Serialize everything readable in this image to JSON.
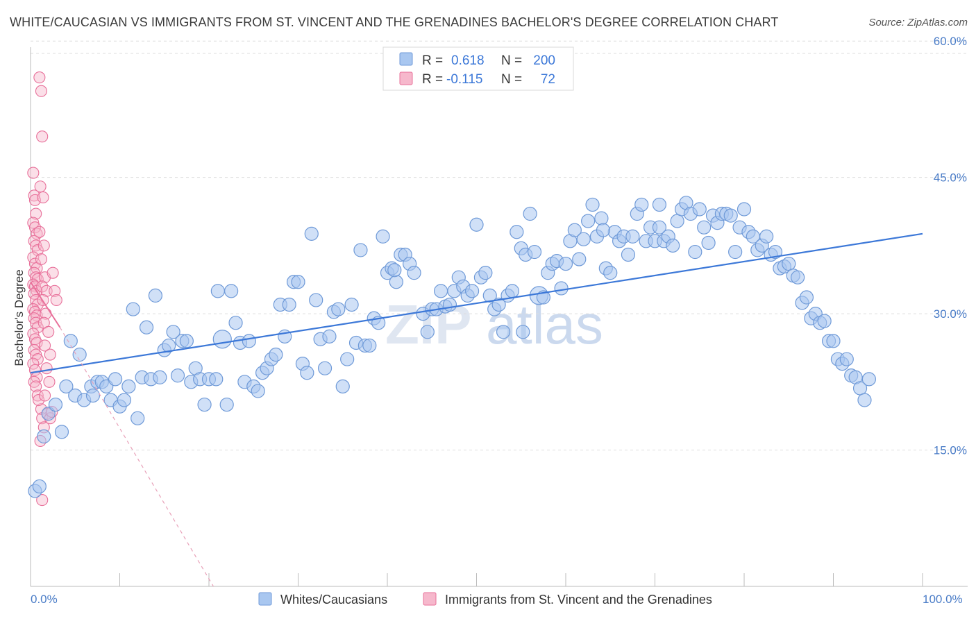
{
  "title": "WHITE/CAUCASIAN VS IMMIGRANTS FROM ST. VINCENT AND THE GRENADINES BACHELOR'S DEGREE CORRELATION CHART",
  "source": "Source: ZipAtlas.com",
  "watermark": {
    "zip": "ZIP",
    "atlas": "atlas"
  },
  "colors": {
    "blue": "#3c78d8",
    "blue_fill": "#a9c7f0",
    "pink": "#e8709a",
    "pink_fill": "#f6b8cc",
    "grid": "#dddddd"
  },
  "legend": {
    "rows": [
      {
        "r_label": "R =",
        "r_value": "0.618",
        "n_label": "N =",
        "n_value": "200"
      },
      {
        "r_label": "R =",
        "r_value": "-0.115",
        "n_label": "N =",
        "n_value": "72"
      }
    ]
  },
  "chart_data": {
    "type": "scatter",
    "title": "WHITE/CAUCASIAN VS IMMIGRANTS FROM ST. VINCENT AND THE GRENADINES BACHELOR'S DEGREE CORRELATION CHART",
    "xlabel": "",
    "ylabel": "Bachelor's Degree",
    "xlim": [
      0,
      100
    ],
    "ylim": [
      0,
      62
    ],
    "x_tick_labels": [
      "0.0%",
      "100.0%"
    ],
    "y_ticks": [
      15,
      30,
      45,
      60
    ],
    "y_tick_labels": [
      "15.0%",
      "30.0%",
      "45.0%",
      "60.0%"
    ],
    "grid": true,
    "legend_position": "top-center",
    "series": [
      {
        "name": "Whites/Caucasians",
        "color": "#3c78d8",
        "r": 0.618,
        "n": 200,
        "trend": {
          "x": [
            0,
            100
          ],
          "y": [
            23.5,
            38.8
          ]
        },
        "points": [
          [
            0.5,
            10.5
          ],
          [
            1,
            11
          ],
          [
            1.5,
            16.5
          ],
          [
            2,
            19
          ],
          [
            2.8,
            20
          ],
          [
            3.5,
            17
          ],
          [
            4,
            22
          ],
          [
            4.5,
            27
          ],
          [
            5,
            21
          ],
          [
            5.5,
            25.5
          ],
          [
            6,
            20.5
          ],
          [
            6.8,
            22
          ],
          [
            7,
            21
          ],
          [
            7.5,
            22.5
          ],
          [
            8,
            22.5
          ],
          [
            8.5,
            22
          ],
          [
            9,
            20.5
          ],
          [
            9.5,
            22.8
          ],
          [
            10,
            19.8
          ],
          [
            10.5,
            20.5
          ],
          [
            11,
            22
          ],
          [
            11.5,
            30.5
          ],
          [
            12,
            18.5
          ],
          [
            12.5,
            23
          ],
          [
            13,
            28.5
          ],
          [
            13.5,
            22.8
          ],
          [
            14,
            32
          ],
          [
            14.5,
            23
          ],
          [
            15,
            26
          ],
          [
            15.5,
            26.5
          ],
          [
            16,
            28
          ],
          [
            16.5,
            23.2
          ],
          [
            17,
            27
          ],
          [
            17.5,
            27
          ],
          [
            18,
            22.5
          ],
          [
            18.5,
            24
          ],
          [
            19,
            22.8
          ],
          [
            19.5,
            20
          ],
          [
            20,
            22.8
          ],
          [
            21,
            32.5
          ],
          [
            21.5,
            27.2
          ],
          [
            22,
            20
          ],
          [
            22.5,
            32.5
          ],
          [
            23,
            29
          ],
          [
            23.5,
            26.8
          ],
          [
            24,
            22.5
          ],
          [
            24.5,
            27
          ],
          [
            25,
            22
          ],
          [
            25.5,
            21.5
          ],
          [
            26,
            23.5
          ],
          [
            26.5,
            24
          ],
          [
            27,
            25
          ],
          [
            27.5,
            25.5
          ],
          [
            28,
            31
          ],
          [
            28.5,
            27.5
          ],
          [
            29,
            31
          ],
          [
            29.5,
            33.5
          ],
          [
            30,
            33.5
          ],
          [
            30.5,
            24.5
          ],
          [
            31,
            23.5
          ],
          [
            31.5,
            38.8
          ],
          [
            32,
            31.5
          ],
          [
            32.5,
            27.2
          ],
          [
            33,
            24
          ],
          [
            33.5,
            27.5
          ],
          [
            34,
            30.2
          ],
          [
            34.5,
            30.5
          ],
          [
            35,
            22
          ],
          [
            35.5,
            25
          ],
          [
            36,
            31
          ],
          [
            36.5,
            26.8
          ],
          [
            37,
            37
          ],
          [
            37.5,
            26.5
          ],
          [
            38,
            26.5
          ],
          [
            38.5,
            29.5
          ],
          [
            39,
            29
          ],
          [
            39.5,
            38.5
          ],
          [
            40,
            34.5
          ],
          [
            40.5,
            35
          ],
          [
            41,
            33.5
          ],
          [
            41.5,
            36.5
          ],
          [
            42,
            36.5
          ],
          [
            42.5,
            35.5
          ],
          [
            43,
            34.5
          ],
          [
            44,
            30
          ],
          [
            44.5,
            28
          ],
          [
            45,
            30.5
          ],
          [
            45.5,
            30.5
          ],
          [
            46,
            32.5
          ],
          [
            46.5,
            30.8
          ],
          [
            47,
            31
          ],
          [
            47.5,
            32.5
          ],
          [
            48,
            34
          ],
          [
            48.5,
            33
          ],
          [
            49,
            32
          ],
          [
            49.5,
            32.5
          ],
          [
            50,
            39.8
          ],
          [
            50.5,
            34
          ],
          [
            51,
            34.5
          ],
          [
            51.5,
            32
          ],
          [
            52,
            30.5
          ],
          [
            52.5,
            31
          ],
          [
            53,
            28
          ],
          [
            53.5,
            32
          ],
          [
            54,
            32.5
          ],
          [
            54.5,
            39
          ],
          [
            55,
            37.2
          ],
          [
            55.5,
            36.5
          ],
          [
            56,
            41
          ],
          [
            56.5,
            36.8
          ],
          [
            57,
            32
          ],
          [
            57.5,
            31.8
          ],
          [
            58,
            34.5
          ],
          [
            58.5,
            35.5
          ],
          [
            59,
            35.8
          ],
          [
            59.5,
            32.8
          ],
          [
            60,
            35.5
          ],
          [
            60.5,
            38
          ],
          [
            61,
            39.2
          ],
          [
            61.5,
            36
          ],
          [
            62,
            38.2
          ],
          [
            62.5,
            40.2
          ],
          [
            63,
            42
          ],
          [
            63.5,
            38.5
          ],
          [
            64,
            40.5
          ],
          [
            64.5,
            35
          ],
          [
            65,
            34.5
          ],
          [
            65.5,
            39
          ],
          [
            66,
            38
          ],
          [
            66.5,
            38.5
          ],
          [
            67,
            36.5
          ],
          [
            67.5,
            38.5
          ],
          [
            68,
            41
          ],
          [
            68.5,
            42
          ],
          [
            69,
            38
          ],
          [
            69.5,
            39.5
          ],
          [
            70,
            38
          ],
          [
            70.5,
            39.5
          ],
          [
            71,
            38
          ],
          [
            71.5,
            38.5
          ],
          [
            72,
            37.5
          ],
          [
            72.5,
            40.2
          ],
          [
            73,
            41.5
          ],
          [
            73.5,
            42.2
          ],
          [
            74,
            41
          ],
          [
            74.5,
            36.8
          ],
          [
            75,
            41.5
          ],
          [
            75.5,
            39.5
          ],
          [
            76,
            37.8
          ],
          [
            76.5,
            40.8
          ],
          [
            77,
            40
          ],
          [
            77.5,
            41
          ],
          [
            78,
            41
          ],
          [
            78.5,
            40.8
          ],
          [
            79,
            36.8
          ],
          [
            79.5,
            39.5
          ],
          [
            80,
            41.5
          ],
          [
            80.5,
            39
          ],
          [
            81,
            38.5
          ],
          [
            81.5,
            37
          ],
          [
            82,
            37.5
          ],
          [
            82.5,
            38.5
          ],
          [
            83,
            36.5
          ],
          [
            83.5,
            36.8
          ],
          [
            84,
            35
          ],
          [
            84.5,
            35.2
          ],
          [
            85,
            35.5
          ],
          [
            85.5,
            34.2
          ],
          [
            86,
            34
          ],
          [
            86.5,
            31.2
          ],
          [
            87,
            31.8
          ],
          [
            87.5,
            29.5
          ],
          [
            88,
            30
          ],
          [
            88.5,
            29
          ],
          [
            89,
            29.2
          ],
          [
            89.5,
            27
          ],
          [
            90,
            27
          ],
          [
            90.5,
            25
          ],
          [
            91,
            24.5
          ],
          [
            91.5,
            25
          ],
          [
            92,
            23.2
          ],
          [
            92.5,
            23
          ],
          [
            93,
            21.8
          ],
          [
            93.5,
            20.5
          ],
          [
            94,
            22.8
          ],
          [
            20.8,
            22.8
          ],
          [
            40.8,
            34.8
          ],
          [
            70.5,
            42
          ],
          [
            64.2,
            39.2
          ],
          [
            55.2,
            28
          ]
        ]
      },
      {
        "name": "Immigrants from St. Vincent and the Grenadines",
        "color": "#e8709a",
        "r": -0.115,
        "n": 72,
        "trend": {
          "x": [
            0,
            3.3
          ],
          "y": [
            33.5,
            28.5
          ]
        },
        "trend_dashed": {
          "x": [
            3.3,
            20.5
          ],
          "y": [
            28.5,
            0
          ]
        },
        "points": [
          [
            0.3,
            45.5
          ],
          [
            0.4,
            43
          ],
          [
            0.5,
            42.5
          ],
          [
            0.6,
            41
          ],
          [
            0.3,
            40
          ],
          [
            0.5,
            39.5
          ],
          [
            0.7,
            38.8
          ],
          [
            0.4,
            38
          ],
          [
            0.6,
            37.5
          ],
          [
            0.8,
            37
          ],
          [
            0.3,
            36.2
          ],
          [
            0.5,
            35.5
          ],
          [
            0.7,
            35
          ],
          [
            0.4,
            34.5
          ],
          [
            0.6,
            34
          ],
          [
            0.8,
            33.8
          ],
          [
            0.3,
            33.2
          ],
          [
            0.5,
            33
          ],
          [
            0.7,
            32.5
          ],
          [
            0.4,
            32.2
          ],
          [
            0.6,
            31.5
          ],
          [
            0.8,
            31
          ],
          [
            0.3,
            30.5
          ],
          [
            0.5,
            30.2
          ],
          [
            0.7,
            29.8
          ],
          [
            0.4,
            29.5
          ],
          [
            0.6,
            29
          ],
          [
            0.8,
            28.5
          ],
          [
            0.3,
            27.8
          ],
          [
            0.5,
            27.2
          ],
          [
            0.7,
            26.8
          ],
          [
            0.4,
            26
          ],
          [
            0.6,
            25.5
          ],
          [
            0.8,
            25
          ],
          [
            0.3,
            24.5
          ],
          [
            0.5,
            23.8
          ],
          [
            0.7,
            23
          ],
          [
            0.4,
            22.5
          ],
          [
            0.6,
            22
          ],
          [
            0.8,
            21
          ],
          [
            1.0,
            56
          ],
          [
            1.2,
            54.5
          ],
          [
            1.3,
            49.5
          ],
          [
            1.1,
            44
          ],
          [
            1.4,
            42.8
          ],
          [
            1.0,
            39
          ],
          [
            1.5,
            37.5
          ],
          [
            1.2,
            36
          ],
          [
            1.6,
            34
          ],
          [
            1.3,
            33
          ],
          [
            1.8,
            32.5
          ],
          [
            1.4,
            31.5
          ],
          [
            1.7,
            30
          ],
          [
            1.5,
            29
          ],
          [
            2.0,
            28
          ],
          [
            1.6,
            26.5
          ],
          [
            2.2,
            25.5
          ],
          [
            1.8,
            24
          ],
          [
            2.5,
            34.5
          ],
          [
            2.7,
            32.5
          ],
          [
            2.9,
            31.5
          ],
          [
            1.2,
            19.5
          ],
          [
            1.3,
            18.5
          ],
          [
            1.5,
            17.5
          ],
          [
            1.1,
            16
          ],
          [
            1.3,
            9.5
          ],
          [
            1.9,
            19
          ],
          [
            2.2,
            18.5
          ],
          [
            2.4,
            19.2
          ],
          [
            0.9,
            20.5
          ],
          [
            1.6,
            21
          ],
          [
            2.1,
            22.5
          ]
        ]
      }
    ]
  },
  "bottom_legend": {
    "blue_label": "Whites/Caucasians",
    "pink_label": "Immigrants from St. Vincent and the Grenadines"
  }
}
